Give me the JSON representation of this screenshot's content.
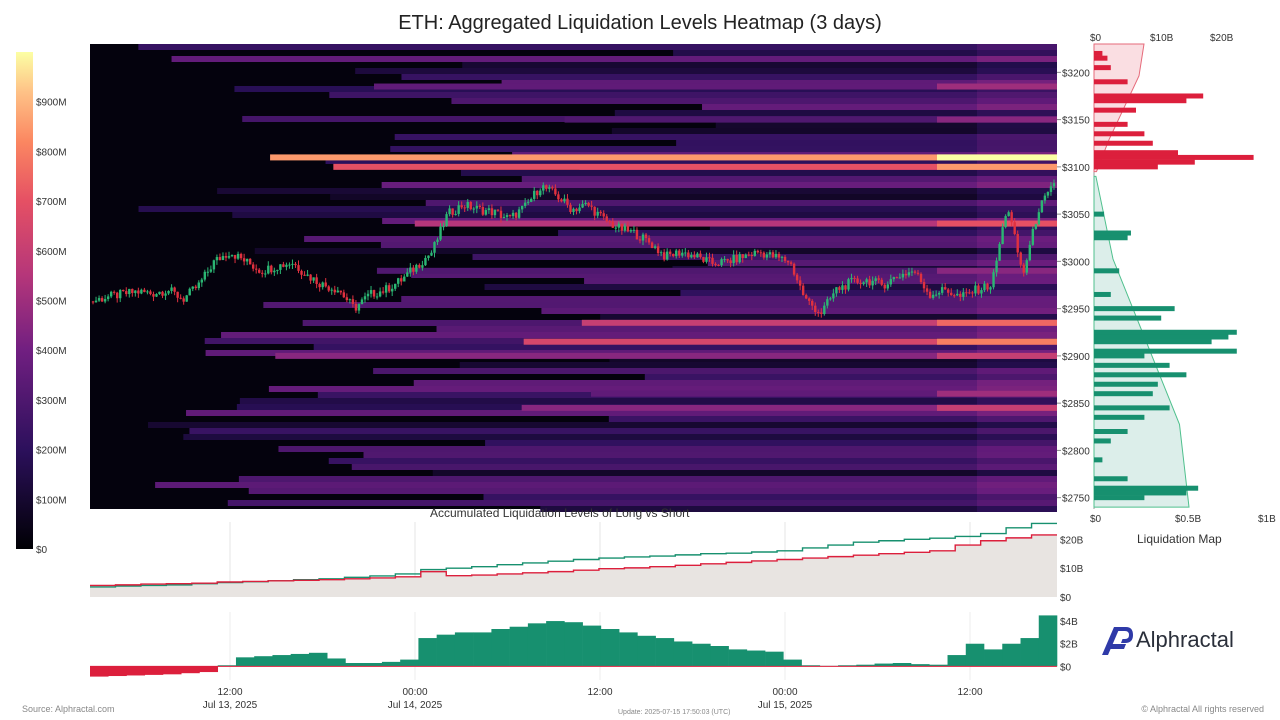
{
  "title": "ETH: Aggregated Liquidation Levels Heatmap (3 days)",
  "footer": {
    "source": "Source: Alphractal.com",
    "update": "Update: 2025-07-15 17:50:03 (UTC)",
    "copyright": "© Alphractal All rights reserved"
  },
  "brand": {
    "name": "Alphractal",
    "accent": "#2f3aa8",
    "icon": "alphractal-logo-icon"
  },
  "colors": {
    "long": "#17906f",
    "short": "#dc1f3c",
    "heat_low": "#000004",
    "heat_mid": "#b5367a",
    "heat_high": "#fcffa4"
  },
  "chart_data": [
    {
      "type": "heatmap",
      "title": "ETH: Aggregated Liquidation Levels Heatmap (3 days)",
      "colorbar": {
        "ticks": [
          "$0",
          "$100M",
          "$200M",
          "$300M",
          "$400M",
          "$500M",
          "$600M",
          "$700M",
          "$800M",
          "$900M"
        ],
        "range": [
          0,
          1000
        ]
      },
      "y_ticks": [
        "$2750",
        "$2800",
        "$2850",
        "$2900",
        "$2950",
        "$3000",
        "$3050",
        "$3100",
        "$3150",
        "$3200"
      ],
      "ylim": [
        2738,
        3230
      ],
      "x_ticks": [
        {
          "time": "12:00",
          "date": "Jul 13, 2025"
        },
        {
          "time": "00:00",
          "date": "Jul 14, 2025"
        },
        {
          "time": "12:00",
          "date": ""
        },
        {
          "time": "00:00",
          "date": "Jul 15, 2025"
        },
        {
          "time": "12:00",
          "date": ""
        }
      ],
      "bands": [
        {
          "price": 3110,
          "intensity": 0.85
        },
        {
          "price": 3100,
          "intensity": 0.7
        },
        {
          "price": 3040,
          "intensity": 0.55
        },
        {
          "price": 2935,
          "intensity": 0.6
        },
        {
          "price": 2915,
          "intensity": 0.65
        },
        {
          "price": 2900,
          "intensity": 0.45
        },
        {
          "price": 2860,
          "intensity": 0.35
        },
        {
          "price": 2845,
          "intensity": 0.45
        },
        {
          "price": 2990,
          "intensity": 0.3
        },
        {
          "price": 3150,
          "intensity": 0.3
        },
        {
          "price": 3185,
          "intensity": 0.35
        }
      ],
      "price_series": {
        "name": "ETH price",
        "values": [
          2957,
          2962,
          2965,
          2968,
          2966,
          2970,
          2960,
          2975,
          3000,
          3010,
          3000,
          2990,
          2995,
          2999,
          2985,
          2975,
          2970,
          2950,
          2965,
          2970,
          2980,
          2995,
          3010,
          3050,
          3060,
          3055,
          3052,
          3045,
          3058,
          3080,
          3070,
          3055,
          3060,
          3045,
          3035,
          3030,
          3020,
          3005,
          3010,
          3005,
          2998,
          3000,
          3005,
          3010,
          3005,
          3000,
          2960,
          2945,
          2970,
          2978,
          2980,
          2975,
          2985,
          2990,
          2965,
          2970,
          2962,
          2970,
          2975,
          3060,
          2985,
          3055,
          3080
        ]
      }
    },
    {
      "type": "bar",
      "orientation": "horizontal",
      "title": "Liquidation Map",
      "top_axis_ticks": [
        "$0",
        "$10B",
        "$20B"
      ],
      "bottom_axis_ticks": [
        "$0",
        "$0.5B",
        "$1B"
      ],
      "series": [
        {
          "name": "",
          "color": "#dc1f3c",
          "prices": [
            3100,
            3105,
            3110,
            3115,
            3125,
            3135,
            3145,
            3160,
            3170,
            3175,
            3190,
            3205,
            3215,
            3220
          ],
          "values": [
            0.38,
            0.6,
            0.95,
            0.5,
            0.35,
            0.3,
            0.2,
            0.25,
            0.55,
            0.65,
            0.2,
            0.1,
            0.08,
            0.05
          ]
        },
        {
          "name": "",
          "color": "#17906f",
          "prices": [
            2750,
            2755,
            2760,
            2770,
            2790,
            2810,
            2820,
            2835,
            2845,
            2860,
            2870,
            2880,
            2890,
            2900,
            2905,
            2915,
            2920,
            2925,
            2940,
            2950,
            2965,
            2990,
            3025,
            3030,
            3050
          ],
          "values": [
            0.3,
            0.55,
            0.62,
            0.2,
            0.05,
            0.1,
            0.2,
            0.3,
            0.45,
            0.35,
            0.38,
            0.55,
            0.45,
            0.3,
            0.85,
            0.7,
            0.8,
            0.85,
            0.4,
            0.48,
            0.1,
            0.15,
            0.2,
            0.22,
            0.06
          ]
        }
      ],
      "cumulative": {
        "short": [
          0.05,
          0.3,
          0.6,
          0.9,
          1.0
        ],
        "long": [
          1.0,
          0.9,
          0.55,
          0.2,
          0.02
        ]
      }
    },
    {
      "type": "line",
      "title": "Accumulated Liquidation Levels of Long vs Short",
      "y_ticks": [
        "$0",
        "$10B",
        "$20B"
      ],
      "ylim": [
        0,
        26
      ],
      "series": [
        {
          "name": "",
          "color": "#17906f",
          "values": [
            3.5,
            3.8,
            4.0,
            4.2,
            4.6,
            5.0,
            5.3,
            5.6,
            6.0,
            6.3,
            6.8,
            7.3,
            8.0,
            9.5,
            10.0,
            10.5,
            11.2,
            11.8,
            12.4,
            13.0,
            13.5,
            13.9,
            14.2,
            14.6,
            15.0,
            15.2,
            15.6,
            16.0,
            17.0,
            18.0,
            19.0,
            19.5,
            20.0,
            20.4,
            21.0,
            22.0,
            24.0,
            25.5
          ]
        },
        {
          "name": "",
          "color": "#dc1f3c",
          "values": [
            4.0,
            4.2,
            4.5,
            4.6,
            4.8,
            5.2,
            5.4,
            5.6,
            5.8,
            6.0,
            6.3,
            6.6,
            7.0,
            8.8,
            7.4,
            7.6,
            8.0,
            8.4,
            8.8,
            9.3,
            9.8,
            10.1,
            10.5,
            11.0,
            11.5,
            12.0,
            12.5,
            13.0,
            13.5,
            14.0,
            14.5,
            15.0,
            15.5,
            16.0,
            18.0,
            19.5,
            20.5,
            21.5
          ]
        }
      ]
    },
    {
      "type": "bar",
      "title": "",
      "y_ticks": [
        "$0",
        "$2B",
        "$4B"
      ],
      "ylim": [
        -1.2,
        4.8
      ],
      "values": [
        -0.9,
        -0.85,
        -0.8,
        -0.75,
        -0.7,
        -0.6,
        -0.5,
        0.1,
        0.8,
        0.9,
        1.0,
        1.1,
        1.2,
        0.7,
        0.3,
        0.3,
        0.4,
        0.6,
        2.5,
        2.8,
        3.0,
        3.0,
        3.3,
        3.5,
        3.8,
        4.0,
        3.9,
        3.6,
        3.3,
        3.0,
        2.7,
        2.5,
        2.2,
        2.0,
        1.8,
        1.5,
        1.4,
        1.3,
        0.6,
        0.1,
        0.05,
        0.1,
        0.15,
        0.25,
        0.3,
        0.2,
        0.15,
        1.0,
        2.0,
        1.5,
        2.0,
        2.5,
        4.5
      ]
    }
  ]
}
